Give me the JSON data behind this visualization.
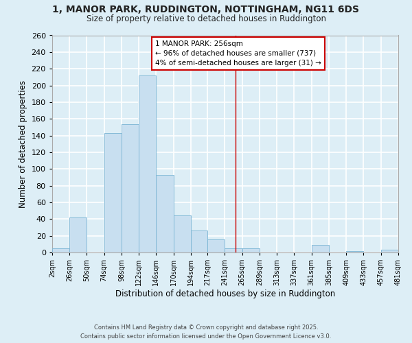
{
  "title": "1, MANOR PARK, RUDDINGTON, NOTTINGHAM, NG11 6DS",
  "subtitle": "Size of property relative to detached houses in Ruddington",
  "xlabel": "Distribution of detached houses by size in Ruddington",
  "ylabel": "Number of detached properties",
  "bar_edges": [
    2,
    26,
    50,
    74,
    98,
    122,
    146,
    170,
    194,
    217,
    241,
    265,
    289,
    313,
    337,
    361,
    385,
    409,
    433,
    457,
    481
  ],
  "bar_heights": [
    5,
    42,
    0,
    143,
    154,
    212,
    93,
    44,
    26,
    16,
    5,
    5,
    0,
    0,
    0,
    9,
    0,
    2,
    0,
    3
  ],
  "bar_color": "#c8dff0",
  "bar_edge_color": "#7ab4d4",
  "vline_x": 256,
  "vline_color": "#cc0000",
  "annotation_title": "1 MANOR PARK: 256sqm",
  "annotation_line1": "← 96% of detached houses are smaller (737)",
  "annotation_line2": "4% of semi-detached houses are larger (31) →",
  "annotation_box_color": "#ffffff",
  "annotation_box_edge": "#cc0000",
  "ylim": [
    0,
    260
  ],
  "yticks": [
    0,
    20,
    40,
    60,
    80,
    100,
    120,
    140,
    160,
    180,
    200,
    220,
    240,
    260
  ],
  "tick_labels": [
    "2sqm",
    "26sqm",
    "50sqm",
    "74sqm",
    "98sqm",
    "122sqm",
    "146sqm",
    "170sqm",
    "194sqm",
    "217sqm",
    "241sqm",
    "265sqm",
    "289sqm",
    "313sqm",
    "337sqm",
    "361sqm",
    "385sqm",
    "409sqm",
    "433sqm",
    "457sqm",
    "481sqm"
  ],
  "background_color": "#ddeef6",
  "grid_color": "#ffffff",
  "footnote1": "Contains HM Land Registry data © Crown copyright and database right 2025.",
  "footnote2": "Contains public sector information licensed under the Open Government Licence v3.0."
}
